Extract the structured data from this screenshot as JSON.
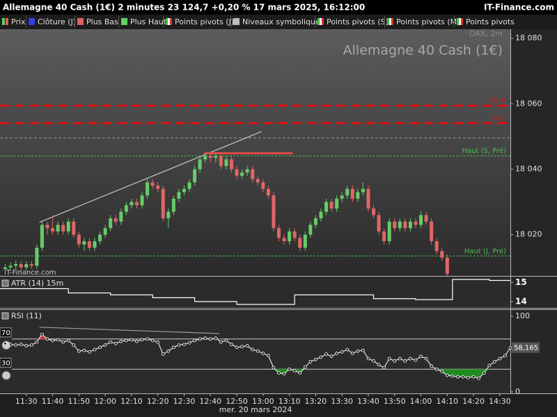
{
  "header": {
    "title": "Allemagne 40 Cash (1€) 2 minutes 23 124,7 +0,20 % 17 mars 2025, 16:12:00",
    "site": "IT-Finance.com"
  },
  "toolbar": [
    "Prix",
    "Clôture (J)",
    "Plus Bas",
    "Plus Haut",
    "Points pivots (J)",
    "Niveaux symboliques",
    "Points pivots (S)",
    "Points pivots (M)",
    "Points pivots"
  ],
  "chart_data": [
    {
      "type": "candlestick",
      "title": "Allemagne 40 Cash (1€)",
      "subtitle": "DAX, 2m",
      "xlabel": "mer. 20 mars 2024",
      "up_color": "#66cc66",
      "down_color": "#e06666",
      "xlim": [
        -1,
        96
      ],
      "xticks": [
        {
          "value": 4,
          "label": "11:30"
        },
        {
          "value": 9,
          "label": "11:40"
        },
        {
          "value": 14,
          "label": "11:50"
        },
        {
          "value": 19,
          "label": "12:00"
        },
        {
          "value": 24,
          "label": "12:10"
        },
        {
          "value": 29,
          "label": "12:20"
        },
        {
          "value": 34,
          "label": "12:30"
        },
        {
          "value": 39,
          "label": "12:40"
        },
        {
          "value": 44,
          "label": "12:50"
        },
        {
          "value": 49,
          "label": "13:00"
        },
        {
          "value": 54,
          "label": "13:10"
        },
        {
          "value": 59,
          "label": "13:20"
        },
        {
          "value": 64,
          "label": "13:30"
        },
        {
          "value": 69,
          "label": "13:40"
        },
        {
          "value": 74,
          "label": "13:50"
        },
        {
          "value": 79,
          "label": "14:00"
        },
        {
          "value": 84,
          "label": "14:10"
        },
        {
          "value": 89,
          "label": "14:20"
        },
        {
          "value": 94,
          "label": "14:30"
        }
      ],
      "ylim": [
        18007.4,
        18082.8
      ],
      "yticks": [
        {
          "value": 18020,
          "label": "18 020"
        },
        {
          "value": 18040,
          "label": "18 040"
        },
        {
          "value": 18060,
          "label": "18 060"
        },
        {
          "value": 18080,
          "label": "18 080"
        }
      ],
      "open": [
        18009.5,
        18010,
        18010.5,
        18011,
        18010,
        18011,
        18010.5,
        18016,
        18023,
        18022,
        18021,
        18023,
        18021,
        18024,
        18020,
        18017,
        18018,
        18016,
        18018,
        18020,
        18022,
        18025,
        18024,
        18027,
        18029,
        18030,
        18029,
        18032,
        18036,
        18035,
        18034,
        18025,
        18027,
        18031,
        18033,
        18034,
        18036,
        18040,
        18043,
        18044,
        18043.5,
        18044,
        18041,
        18043,
        18040,
        18038,
        18039,
        18040,
        18037,
        18036,
        18034,
        18032,
        18022,
        18019,
        18018,
        18021,
        18019,
        18016,
        18020,
        18023,
        18025,
        18027,
        18030,
        18028,
        18031,
        18032,
        18034,
        18031,
        18033,
        18034,
        18028,
        18026,
        18021,
        18018,
        18024,
        18022,
        18024,
        18022,
        18024,
        18023,
        18026,
        18024,
        18018,
        18015,
        18013
      ],
      "high": [
        18011,
        18011.5,
        18012,
        18012,
        18012,
        18012,
        18017,
        18024,
        18024,
        18026,
        18024,
        18024,
        18025,
        18025,
        18021,
        18019,
        18019,
        18019,
        18021,
        18023,
        18026,
        18026,
        18028,
        18030,
        18031,
        18031,
        18033,
        18037,
        18037,
        18036,
        18035,
        18028,
        18032,
        18034,
        18035,
        18037,
        18041,
        18044,
        18045,
        18045,
        18045,
        18045,
        18044,
        18044,
        18041,
        18040,
        18041,
        18041,
        18038,
        18037,
        18035,
        18033,
        18023,
        18020,
        18022,
        18022,
        18020,
        18021,
        18024,
        18026,
        18028,
        18031,
        18031,
        18032,
        18033,
        18035,
        18035,
        18034,
        18036,
        18035,
        18029,
        18027,
        18022,
        18025,
        18025,
        18025,
        18025,
        18025,
        18025,
        18027,
        18027,
        18025,
        18019,
        18016,
        18014
      ],
      "low": [
        18008.5,
        18009,
        18009.5,
        18009,
        18009,
        18009.5,
        18009.5,
        18015,
        18020,
        18020,
        18020,
        18020,
        18020,
        18019,
        18016,
        18015,
        18015,
        18015,
        18017,
        18019,
        18021,
        18023,
        18023,
        18026,
        18028,
        18028,
        18028,
        18031,
        18034,
        18033,
        18024,
        18022,
        18026,
        18030,
        18032,
        18033,
        18035,
        18039,
        18042,
        18042,
        18042,
        18040,
        18040,
        18039,
        18037,
        18037,
        18038,
        18036,
        18035,
        18033,
        18031,
        18021,
        18018,
        18017,
        18017,
        18018,
        18015,
        18015,
        18019,
        18022,
        18024,
        18026,
        18027,
        18027,
        18030,
        18031,
        18030,
        18030,
        18032,
        18027,
        18025,
        18020,
        18017,
        18017,
        18021,
        18021,
        18021,
        18021,
        18022,
        18022,
        18023,
        18017,
        18014,
        18012,
        18007.5
      ],
      "close": [
        18010,
        18010.5,
        18011,
        18010,
        18011,
        18010.5,
        18016,
        18023,
        18022,
        18021,
        18023,
        18021,
        18024,
        18020,
        18017,
        18018,
        18016,
        18018,
        18020,
        18022,
        18025,
        18024,
        18027,
        18029,
        18030,
        18029,
        18032,
        18036,
        18035,
        18034,
        18025,
        18027,
        18031,
        18033,
        18034,
        18036,
        18040,
        18043,
        18044,
        18043.5,
        18044,
        18041,
        18043,
        18040,
        18038,
        18039,
        18040,
        18037,
        18036,
        18034,
        18032,
        18022,
        18019,
        18018,
        18021,
        18019,
        18016,
        18020,
        18023,
        18025,
        18027,
        18030,
        18028,
        18031,
        18032,
        18034,
        18031,
        18033,
        18034,
        18028,
        18026,
        18021,
        18018,
        18024,
        18022,
        18024,
        18022,
        18024,
        18023,
        18026,
        18024,
        18018,
        18015,
        18013,
        18008
      ],
      "levels": [
        {
          "label": "R1 M",
          "value": 18059.4,
          "color": "#e01010",
          "style": "thick"
        },
        {
          "label": "R1 J",
          "value": 18054.1,
          "color": "#e01010",
          "style": "thick"
        },
        {
          "value": 18049.6,
          "color": "#9a9a9a",
          "style": "thin"
        },
        {
          "label": "Haut (S, Pré)",
          "value": 18044.1,
          "color": "#4cbf4c",
          "style": "dotted"
        },
        {
          "label": "Haut (J, Pré)",
          "value": 18013.5,
          "color": "#4cbf4c",
          "style": "dotted"
        }
      ],
      "lines": [
        {
          "x": [
            6.5,
            48.7
          ],
          "y": [
            18023.8,
            18051.5
          ],
          "color": "#c8c8c8"
        },
        {
          "x": [
            37.8,
            54.6
          ],
          "y": [
            18044.9,
            18044.9
          ],
          "color": "#e04848"
        }
      ]
    },
    {
      "type": "line",
      "title": "ATR (14) 15m",
      "step": true,
      "color": "#ffffff",
      "ylim": [
        13.67,
        15.3
      ],
      "yticks": [
        14,
        15
      ],
      "x": [
        -1,
        12,
        20,
        28,
        36,
        44,
        55,
        70,
        78,
        85,
        92,
        96
      ],
      "values": [
        14.67,
        14.45,
        14.35,
        14.2,
        14.0,
        13.85,
        14.35,
        14.15,
        14.1,
        15.15,
        15.1,
        15.1
      ]
    },
    {
      "type": "rsi",
      "title": "RSI (11)",
      "color": "#ffffff",
      "ylim": [
        -1.9,
        108.4
      ],
      "yticks": [
        0,
        100
      ],
      "levels": [
        70,
        30
      ],
      "overbought_fill": "#c03030",
      "oversold_fill": "#1f8a1f",
      "values": [
        64,
        63,
        62,
        63,
        61,
        62,
        66,
        76,
        70,
        68,
        69,
        66,
        68,
        62,
        54,
        55,
        53,
        56,
        59,
        62,
        66,
        64,
        67,
        68,
        69,
        67,
        69,
        70,
        68,
        66,
        50,
        54,
        59,
        62,
        63,
        65,
        68,
        70,
        71,
        70,
        71,
        66,
        68,
        63,
        59,
        60,
        61,
        56,
        54,
        51,
        48,
        32,
        25,
        24,
        30,
        28,
        25,
        33,
        40,
        43,
        46,
        50,
        47,
        51,
        53,
        56,
        51,
        54,
        55,
        44,
        41,
        36,
        32,
        44,
        41,
        44,
        41,
        44,
        42,
        47,
        44,
        34,
        30,
        27,
        22,
        21,
        20,
        20,
        19,
        20,
        18,
        25,
        35,
        40,
        44,
        48,
        58.165
      ],
      "current": {
        "value": 58.165,
        "label": "58,165"
      },
      "divergence": {
        "x": [
          6.5,
          40.7
        ],
        "y": [
          85.6,
          77.2
        ],
        "color": "#a0a0a0"
      }
    }
  ]
}
